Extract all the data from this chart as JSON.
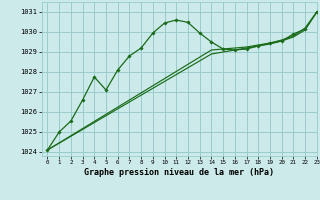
{
  "title": "Graphe pression niveau de la mer (hPa)",
  "bg_color": "#cceaea",
  "grid_color": "#99cccc",
  "line_color": "#1a6b1a",
  "text_color": "#000000",
  "xlim": [
    -0.5,
    23
  ],
  "ylim": [
    1023.8,
    1031.5
  ],
  "yticks": [
    1024,
    1025,
    1026,
    1027,
    1028,
    1029,
    1030,
    1031
  ],
  "xticks": [
    0,
    1,
    2,
    3,
    4,
    5,
    6,
    7,
    8,
    9,
    10,
    11,
    12,
    13,
    14,
    15,
    16,
    17,
    18,
    19,
    20,
    21,
    22,
    23
  ],
  "series1_x": [
    0,
    1,
    2,
    3,
    4,
    5,
    6,
    7,
    8,
    9,
    10,
    11,
    12,
    13,
    14,
    15,
    16,
    17,
    18,
    19,
    20,
    21,
    22,
    23
  ],
  "series1_y": [
    1024.1,
    1025.0,
    1025.55,
    1026.6,
    1027.75,
    1027.1,
    1028.1,
    1028.8,
    1029.2,
    1029.95,
    1030.45,
    1030.6,
    1030.48,
    1029.95,
    1029.5,
    1029.15,
    1029.1,
    1029.15,
    1029.3,
    1029.45,
    1029.55,
    1029.9,
    1030.15,
    1031.0
  ],
  "series2_x": [
    0,
    14,
    15,
    16,
    17,
    18,
    19,
    20,
    21,
    22,
    23
  ],
  "series2_y": [
    1024.1,
    1029.1,
    1029.15,
    1029.2,
    1029.25,
    1029.35,
    1029.45,
    1029.6,
    1029.8,
    1030.2,
    1031.0
  ],
  "series3_x": [
    0,
    14,
    15,
    16,
    17,
    18,
    19,
    20,
    21,
    22,
    23
  ],
  "series3_y": [
    1024.1,
    1028.9,
    1029.0,
    1029.1,
    1029.2,
    1029.3,
    1029.4,
    1029.55,
    1029.75,
    1030.1,
    1031.0
  ]
}
